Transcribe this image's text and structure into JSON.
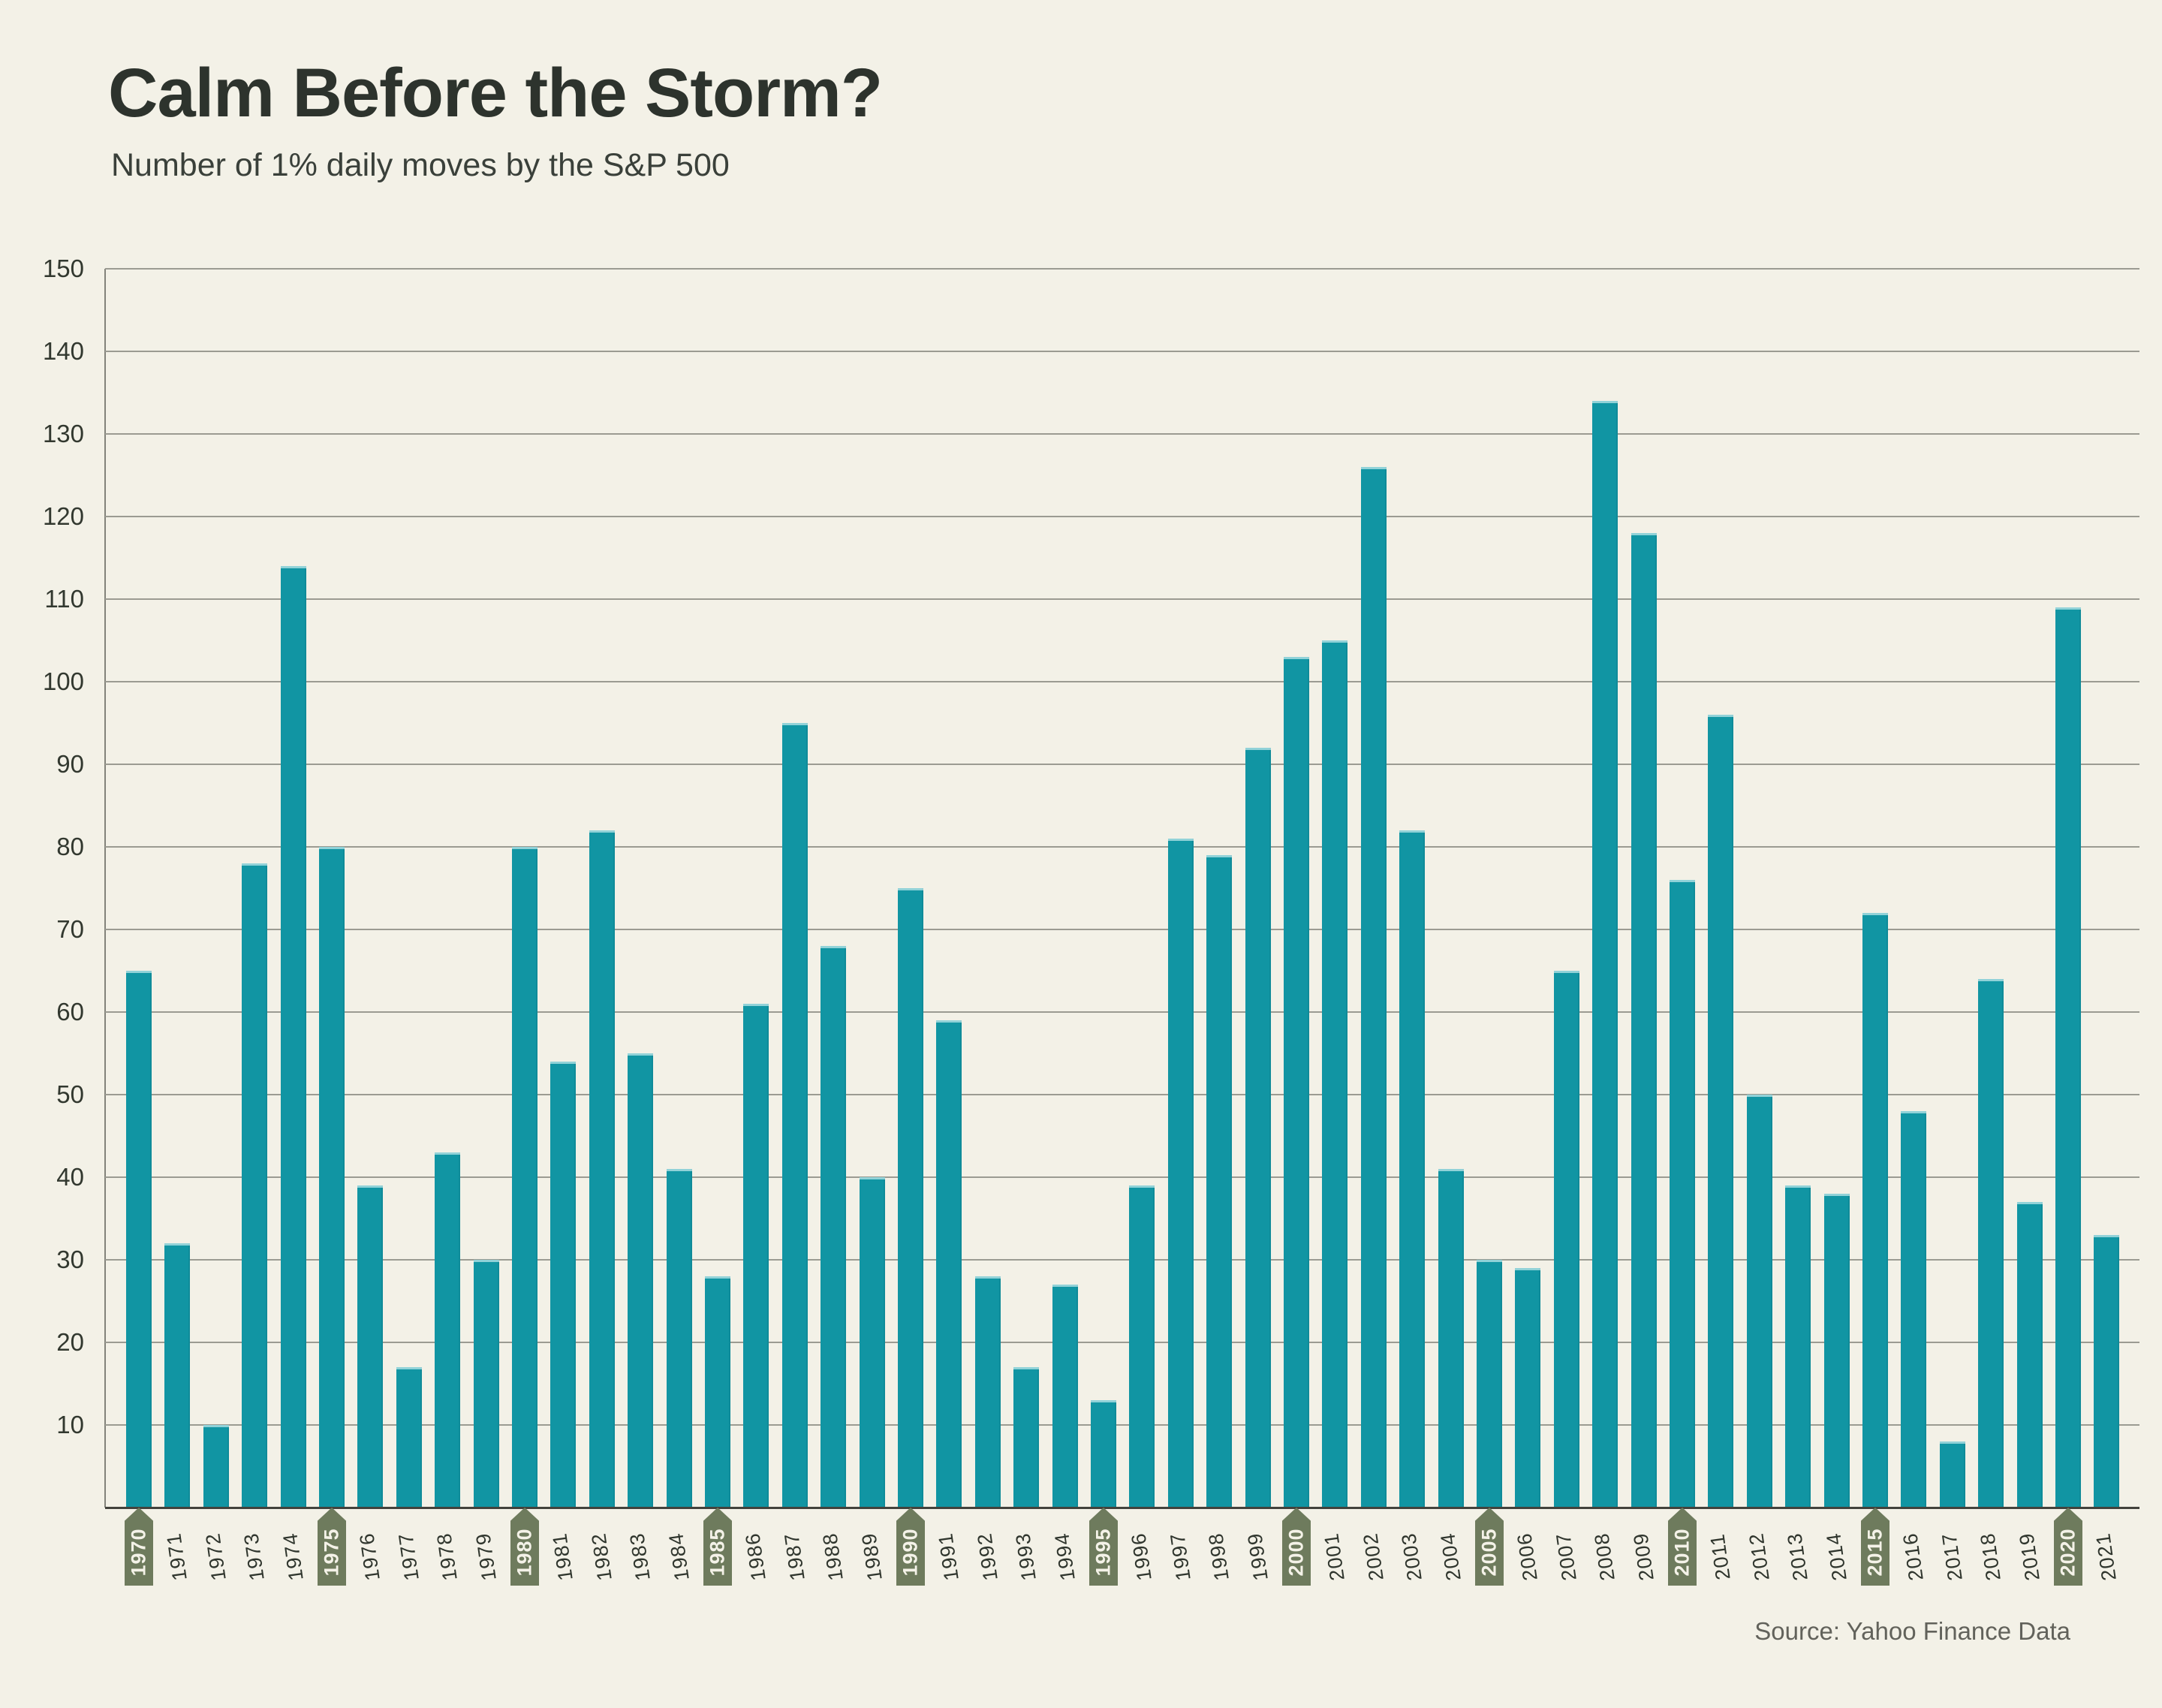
{
  "header": {
    "title": "Calm Before the Storm?",
    "subtitle": "Number of 1% daily moves by the S&P 500"
  },
  "footer": {
    "source": "Source: Yahoo Finance Data"
  },
  "colors": {
    "background": "#f3f1e7",
    "bar": "#1195a3",
    "bar_top_highlight": "#d7f3f5",
    "gridline": "#9b9b92",
    "axis_baseline": "#42423c",
    "badge": "#6e7b5d",
    "badge_text": "#f4f2e8",
    "text_dark": "#2d332d",
    "source_text": "#62625b"
  },
  "chart_data": {
    "type": "bar",
    "title": "Calm Before the Storm?",
    "subtitle": "Number of 1% daily moves by the S&P 500",
    "xlabel": "",
    "ylabel": "",
    "ylim": [
      0,
      150
    ],
    "yticks": [
      10,
      20,
      30,
      40,
      50,
      60,
      70,
      80,
      90,
      100,
      110,
      120,
      130,
      140,
      150
    ],
    "grid": true,
    "legend_position": "none",
    "categories": [
      1970,
      1971,
      1972,
      1973,
      1974,
      1975,
      1976,
      1977,
      1978,
      1979,
      1980,
      1981,
      1982,
      1983,
      1984,
      1985,
      1986,
      1987,
      1988,
      1989,
      1990,
      1991,
      1992,
      1993,
      1994,
      1995,
      1996,
      1997,
      1998,
      1999,
      2000,
      2001,
      2002,
      2003,
      2004,
      2005,
      2006,
      2007,
      2008,
      2009,
      2010,
      2011,
      2012,
      2013,
      2014,
      2015,
      2016,
      2017,
      2018,
      2019,
      2020,
      2021
    ],
    "values": [
      65,
      32,
      10,
      78,
      114,
      80,
      39,
      17,
      43,
      30,
      80,
      54,
      82,
      55,
      41,
      28,
      61,
      95,
      68,
      40,
      75,
      59,
      28,
      17,
      27,
      13,
      39,
      81,
      79,
      92,
      103,
      105,
      126,
      82,
      41,
      30,
      29,
      65,
      134,
      118,
      76,
      96,
      50,
      39,
      38,
      72,
      48,
      8,
      64,
      37,
      109,
      33
    ],
    "highlighted_years": [
      1970,
      1975,
      1980,
      1985,
      1990,
      1995,
      2000,
      2005,
      2010,
      2015,
      2020
    ]
  }
}
